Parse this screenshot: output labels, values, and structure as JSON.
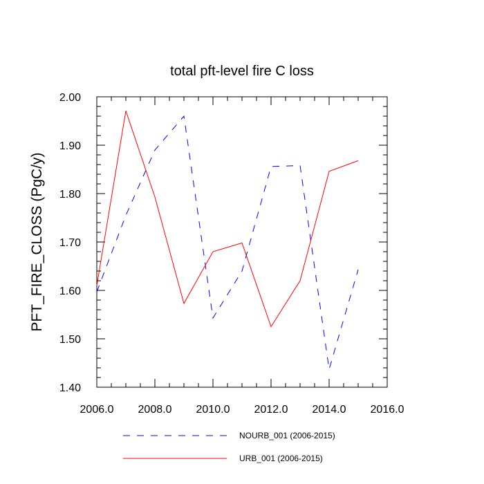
{
  "chart_data": {
    "type": "line",
    "title": "total pft-level fire C loss",
    "xlabel": "",
    "ylabel": "PFT_FIRE_CLOSS  (PgC/y)",
    "xlim": [
      2006.0,
      2016.0
    ],
    "ylim": [
      1.4,
      2.0
    ],
    "x_ticks": [
      "2006.0",
      "2008.0",
      "2010.0",
      "2012.0",
      "2014.0",
      "2016.0"
    ],
    "y_ticks": [
      "1.40",
      "1.50",
      "1.60",
      "1.70",
      "1.80",
      "1.90",
      "2.00"
    ],
    "grid": false,
    "legend_position": "bottom",
    "x": [
      2006,
      2007,
      2008,
      2009,
      2010,
      2011,
      2012,
      2013,
      2014,
      2015
    ],
    "series": [
      {
        "name": "NOURB_001 (2006-2015)",
        "color": "#0000ff",
        "style": "dashed",
        "values": [
          1.597,
          1.755,
          1.89,
          1.96,
          1.543,
          1.64,
          1.856,
          1.858,
          1.437,
          1.643
        ]
      },
      {
        "name": "URB_001 (2006-2015)",
        "color": "#ff0000",
        "style": "solid",
        "values": [
          1.61,
          1.971,
          1.793,
          1.573,
          1.68,
          1.698,
          1.525,
          1.62,
          1.846,
          1.868
        ]
      }
    ]
  }
}
